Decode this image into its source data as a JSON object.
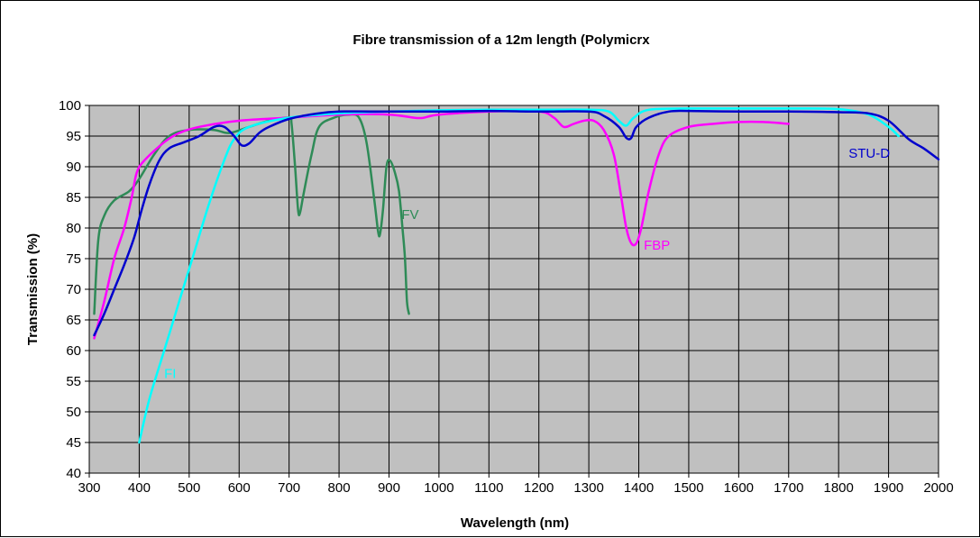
{
  "chart_data": {
    "type": "line",
    "title": "Fibre transmission of a 12m length (Polymicrх",
    "xlabel": "Wavelength (nm)",
    "ylabel": "Transmission (%)",
    "xlim": [
      300,
      2000
    ],
    "ylim": [
      40,
      100
    ],
    "xticks": [
      300,
      400,
      500,
      600,
      700,
      800,
      900,
      1000,
      1100,
      1200,
      1300,
      1400,
      1500,
      1600,
      1700,
      1800,
      1900,
      2000
    ],
    "yticks": [
      40,
      45,
      50,
      55,
      60,
      65,
      70,
      75,
      80,
      85,
      90,
      95,
      100
    ],
    "grid": true,
    "legend": "inline-labels",
    "plot_background": "#c0c0c0",
    "series": [
      {
        "name": "FV",
        "color": "#2e8b57",
        "points": [
          [
            310,
            66
          ],
          [
            318,
            78
          ],
          [
            330,
            82
          ],
          [
            350,
            84.5
          ],
          [
            380,
            86
          ],
          [
            400,
            88
          ],
          [
            430,
            92
          ],
          [
            460,
            95
          ],
          [
            500,
            96
          ],
          [
            550,
            96
          ],
          [
            580,
            95.5
          ],
          [
            620,
            96.5
          ],
          [
            660,
            97.5
          ],
          [
            700,
            98
          ],
          [
            705,
            97
          ],
          [
            712,
            90
          ],
          [
            718,
            83
          ],
          [
            722,
            82.5
          ],
          [
            730,
            86
          ],
          [
            745,
            92
          ],
          [
            760,
            96.5
          ],
          [
            790,
            98
          ],
          [
            820,
            98.5
          ],
          [
            840,
            98
          ],
          [
            855,
            94
          ],
          [
            870,
            85
          ],
          [
            878,
            79.5
          ],
          [
            882,
            79
          ],
          [
            888,
            83
          ],
          [
            895,
            90
          ],
          [
            902,
            91
          ],
          [
            912,
            89
          ],
          [
            920,
            86
          ],
          [
            927,
            80
          ],
          [
            932,
            75
          ],
          [
            936,
            68
          ],
          [
            940,
            66
          ]
        ]
      },
      {
        "name": "FBP",
        "color": "#ff00ff",
        "points": [
          [
            310,
            62
          ],
          [
            330,
            68
          ],
          [
            350,
            75
          ],
          [
            370,
            80
          ],
          [
            385,
            85
          ],
          [
            395,
            89
          ],
          [
            410,
            91
          ],
          [
            450,
            94
          ],
          [
            480,
            95.5
          ],
          [
            520,
            96.5
          ],
          [
            600,
            97.5
          ],
          [
            700,
            98
          ],
          [
            800,
            98.5
          ],
          [
            900,
            98.5
          ],
          [
            950,
            98
          ],
          [
            970,
            98
          ],
          [
            1000,
            98.5
          ],
          [
            1100,
            99
          ],
          [
            1200,
            99
          ],
          [
            1230,
            98
          ],
          [
            1250,
            96.5
          ],
          [
            1270,
            97
          ],
          [
            1290,
            97.5
          ],
          [
            1310,
            97.5
          ],
          [
            1330,
            96
          ],
          [
            1350,
            92
          ],
          [
            1365,
            85
          ],
          [
            1375,
            80
          ],
          [
            1385,
            77.5
          ],
          [
            1395,
            77.5
          ],
          [
            1405,
            80
          ],
          [
            1420,
            86
          ],
          [
            1440,
            92
          ],
          [
            1460,
            95
          ],
          [
            1500,
            96.5
          ],
          [
            1550,
            97
          ],
          [
            1600,
            97.3
          ],
          [
            1650,
            97.3
          ],
          [
            1700,
            97
          ]
        ]
      },
      {
        "name": "FI",
        "color": "#00ffff",
        "points": [
          [
            400,
            45
          ],
          [
            420,
            52
          ],
          [
            450,
            60
          ],
          [
            480,
            68
          ],
          [
            510,
            76
          ],
          [
            540,
            84
          ],
          [
            570,
            91
          ],
          [
            590,
            94.5
          ],
          [
            620,
            96.5
          ],
          [
            700,
            98
          ],
          [
            800,
            98.7
          ],
          [
            900,
            99
          ],
          [
            1000,
            99.2
          ],
          [
            1100,
            99.3
          ],
          [
            1200,
            99.3
          ],
          [
            1300,
            99.3
          ],
          [
            1340,
            99
          ],
          [
            1360,
            97.5
          ],
          [
            1375,
            96.7
          ],
          [
            1390,
            98
          ],
          [
            1420,
            99.3
          ],
          [
            1500,
            99.5
          ],
          [
            1600,
            99.5
          ],
          [
            1700,
            99.5
          ],
          [
            1800,
            99.4
          ],
          [
            1860,
            98.5
          ],
          [
            1900,
            96.5
          ],
          [
            1920,
            95
          ]
        ]
      },
      {
        "name": "STU-D",
        "color": "#0000cd",
        "points": [
          [
            310,
            62.5
          ],
          [
            330,
            66
          ],
          [
            350,
            70
          ],
          [
            370,
            74
          ],
          [
            390,
            78.5
          ],
          [
            405,
            83
          ],
          [
            420,
            87
          ],
          [
            440,
            91
          ],
          [
            460,
            93
          ],
          [
            490,
            94
          ],
          [
            520,
            95
          ],
          [
            550,
            96.5
          ],
          [
            570,
            96.5
          ],
          [
            590,
            95
          ],
          [
            605,
            93.5
          ],
          [
            620,
            93.8
          ],
          [
            640,
            95.5
          ],
          [
            660,
            96.5
          ],
          [
            700,
            97.8
          ],
          [
            750,
            98.6
          ],
          [
            800,
            99
          ],
          [
            900,
            99
          ],
          [
            1000,
            99
          ],
          [
            1100,
            99.1
          ],
          [
            1200,
            99
          ],
          [
            1300,
            99
          ],
          [
            1330,
            98.3
          ],
          [
            1360,
            96.5
          ],
          [
            1375,
            94.7
          ],
          [
            1385,
            94.7
          ],
          [
            1395,
            96.5
          ],
          [
            1420,
            98
          ],
          [
            1460,
            99
          ],
          [
            1500,
            99.1
          ],
          [
            1600,
            99
          ],
          [
            1700,
            99
          ],
          [
            1800,
            98.9
          ],
          [
            1860,
            98.7
          ],
          [
            1900,
            97.5
          ],
          [
            1940,
            94.5
          ],
          [
            1970,
            93
          ],
          [
            2000,
            91.2
          ]
        ]
      }
    ],
    "labels": [
      {
        "text": "FV",
        "series": "FV",
        "x": 925,
        "y": 81.5
      },
      {
        "text": "FBP",
        "series": "FBP",
        "x": 1410,
        "y": 76.5
      },
      {
        "text": "FI",
        "series": "FI",
        "x": 450,
        "y": 55.5
      },
      {
        "text": "STU-D",
        "series": "STU-D",
        "x": 1820,
        "y": 91.5
      }
    ]
  }
}
